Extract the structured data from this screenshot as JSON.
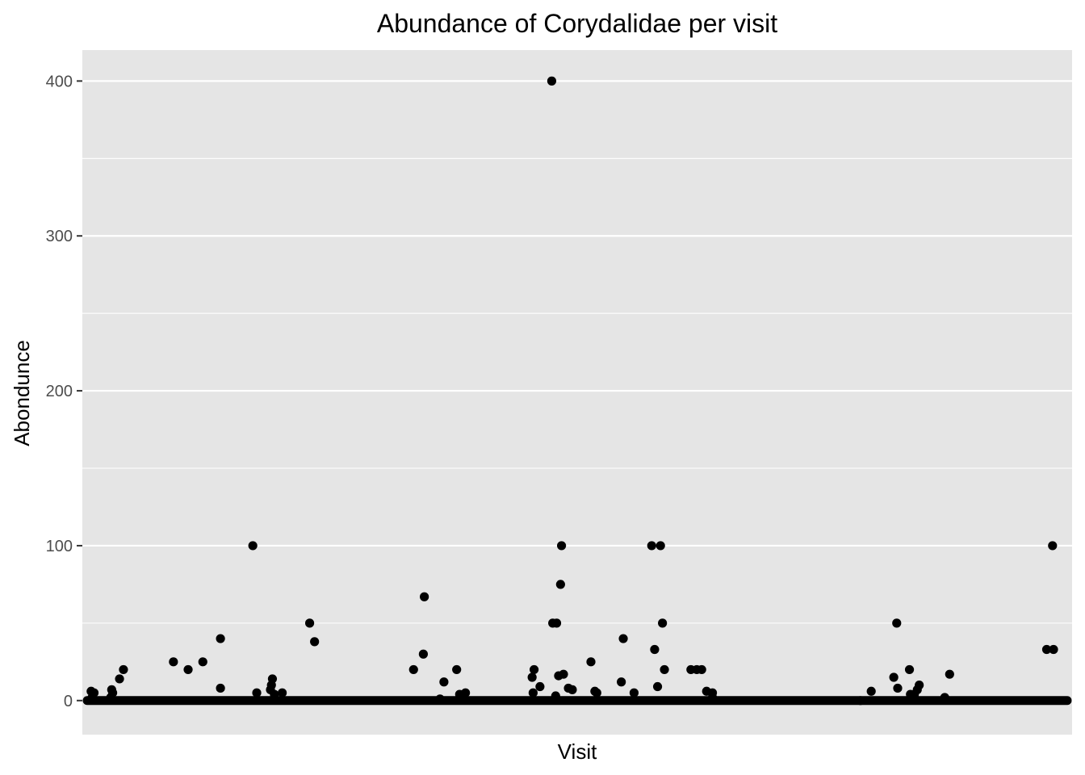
{
  "chart_data": {
    "type": "scatter",
    "title": "Abundance of Corydalidae per visit",
    "xlabel": "Visit",
    "ylabel": "Abondunce",
    "x_axis_ticks": "none",
    "xlim": [
      0,
      1000
    ],
    "ylim": [
      -22,
      420
    ],
    "yticks": [
      0,
      100,
      200,
      300,
      400
    ],
    "ytick_labels": [
      "0",
      "100",
      "200",
      "300",
      "400"
    ],
    "grid": true,
    "legend": "none",
    "colors": {
      "panel": "#e5e5e5",
      "grid": "#ffffff",
      "point": "#000000",
      "tick_text": "#4d4d4d"
    },
    "baseline": {
      "y": 0,
      "x_start": 0,
      "x_end": 1000,
      "note_visible": ""
    },
    "points": [
      {
        "x": 4,
        "y": 6
      },
      {
        "x": 7,
        "y": 5
      },
      {
        "x": 5,
        "y": 2
      },
      {
        "x": 25,
        "y": 7
      },
      {
        "x": 26,
        "y": 5
      },
      {
        "x": 24,
        "y": 2
      },
      {
        "x": 33,
        "y": 14
      },
      {
        "x": 37,
        "y": 20
      },
      {
        "x": 88,
        "y": 25
      },
      {
        "x": 103,
        "y": 20
      },
      {
        "x": 118,
        "y": 25
      },
      {
        "x": 136,
        "y": 40
      },
      {
        "x": 136,
        "y": 8
      },
      {
        "x": 169,
        "y": 100
      },
      {
        "x": 173,
        "y": 5
      },
      {
        "x": 189,
        "y": 14
      },
      {
        "x": 188,
        "y": 10
      },
      {
        "x": 187,
        "y": 7
      },
      {
        "x": 191,
        "y": 4
      },
      {
        "x": 199,
        "y": 5
      },
      {
        "x": 227,
        "y": 50
      },
      {
        "x": 232,
        "y": 38
      },
      {
        "x": 333,
        "y": 20
      },
      {
        "x": 343,
        "y": 30
      },
      {
        "x": 344,
        "y": 67
      },
      {
        "x": 360,
        "y": 1
      },
      {
        "x": 364,
        "y": 12
      },
      {
        "x": 377,
        "y": 20
      },
      {
        "x": 380,
        "y": 4
      },
      {
        "x": 386,
        "y": 5
      },
      {
        "x": 454,
        "y": 15
      },
      {
        "x": 456,
        "y": 20
      },
      {
        "x": 455,
        "y": 5
      },
      {
        "x": 462,
        "y": 9
      },
      {
        "x": 474,
        "y": 400
      },
      {
        "x": 475,
        "y": 50
      },
      {
        "x": 479,
        "y": 50
      },
      {
        "x": 478,
        "y": 3
      },
      {
        "x": 481,
        "y": 16
      },
      {
        "x": 483,
        "y": 75
      },
      {
        "x": 484,
        "y": 100
      },
      {
        "x": 486,
        "y": 17
      },
      {
        "x": 491,
        "y": 8
      },
      {
        "x": 495,
        "y": 7
      },
      {
        "x": 514,
        "y": 25
      },
      {
        "x": 518,
        "y": 6
      },
      {
        "x": 520,
        "y": 5
      },
      {
        "x": 545,
        "y": 12
      },
      {
        "x": 547,
        "y": 40
      },
      {
        "x": 558,
        "y": 5
      },
      {
        "x": 576,
        "y": 100
      },
      {
        "x": 579,
        "y": 33
      },
      {
        "x": 582,
        "y": 9
      },
      {
        "x": 585,
        "y": 100
      },
      {
        "x": 587,
        "y": 50
      },
      {
        "x": 589,
        "y": 20
      },
      {
        "x": 616,
        "y": 20
      },
      {
        "x": 622,
        "y": 20
      },
      {
        "x": 627,
        "y": 20
      },
      {
        "x": 632,
        "y": 6
      },
      {
        "x": 638,
        "y": 5
      },
      {
        "x": 638,
        "y": 2
      },
      {
        "x": 789,
        "y": 0
      },
      {
        "x": 800,
        "y": 6
      },
      {
        "x": 823,
        "y": 15
      },
      {
        "x": 826,
        "y": 50
      },
      {
        "x": 827,
        "y": 8
      },
      {
        "x": 839,
        "y": 20
      },
      {
        "x": 840,
        "y": 4
      },
      {
        "x": 844,
        "y": 4
      },
      {
        "x": 847,
        "y": 7
      },
      {
        "x": 849,
        "y": 10
      },
      {
        "x": 875,
        "y": 2
      },
      {
        "x": 880,
        "y": 17
      },
      {
        "x": 979,
        "y": 33
      },
      {
        "x": 986,
        "y": 33
      },
      {
        "x": 985,
        "y": 100
      }
    ]
  }
}
